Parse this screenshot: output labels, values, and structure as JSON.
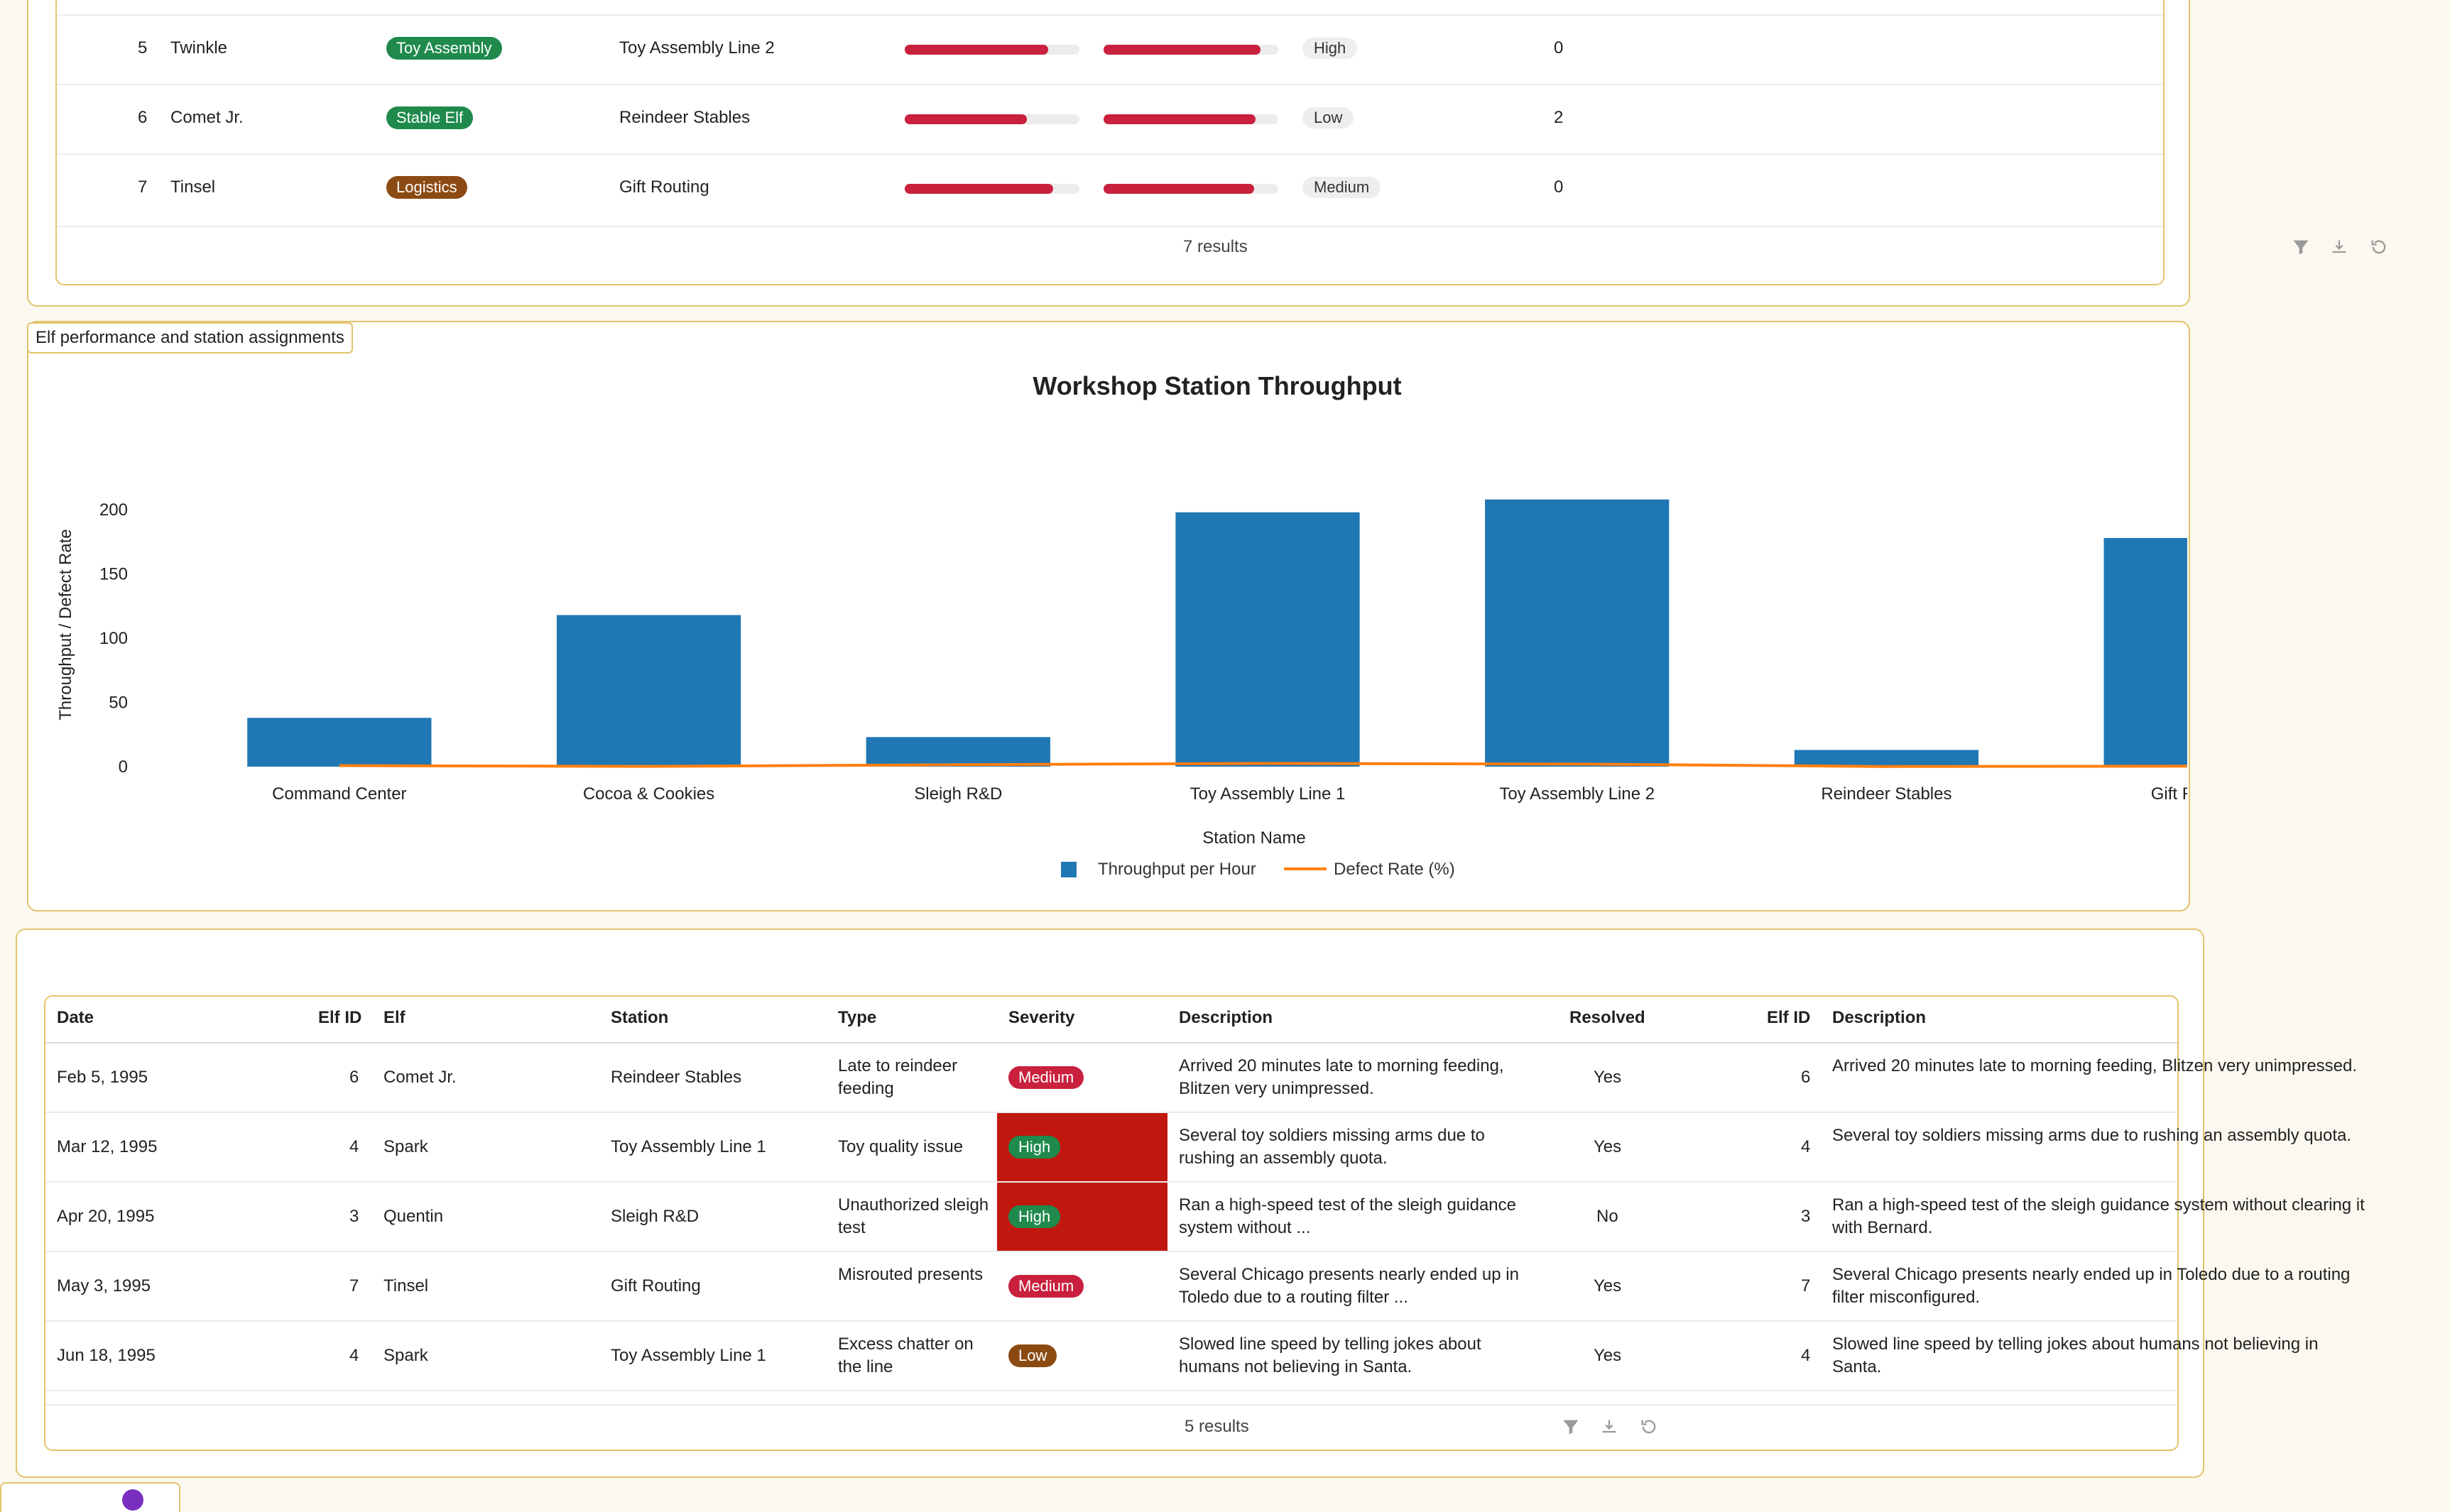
{
  "top_table": {
    "rows": [
      {
        "num": "5",
        "name": "Twinkle",
        "dept": "Toy Assembly",
        "dept_color": "#1f8a4c",
        "station": "Toy Assembly Line 2",
        "bar1": 0.82,
        "bar2": 0.9,
        "priority": "High",
        "count": "0"
      },
      {
        "num": "6",
        "name": "Comet Jr.",
        "dept": "Stable Elf",
        "dept_color": "#1f8a4c",
        "station": "Reindeer Stables",
        "bar1": 0.7,
        "bar2": 0.87,
        "priority": "Low",
        "count": "2"
      },
      {
        "num": "7",
        "name": "Tinsel",
        "dept": "Logistics",
        "dept_color": "#8b4a12",
        "station": "Gift Routing",
        "bar1": 0.85,
        "bar2": 0.86,
        "priority": "Medium",
        "count": "0"
      }
    ],
    "footer": "7 results"
  },
  "chart_tooltip": "Elf performance and station assignments",
  "chart_data": {
    "type": "bar",
    "title": "Workshop Station Throughput",
    "xlabel": "Station Name",
    "ylabel": "Throughput / Defect Rate",
    "categories": [
      "Command Center",
      "Cocoa & Cookies",
      "Sleigh R&D",
      "Toy Assembly Line 1",
      "Toy Assembly Line 2",
      "Reindeer Stables",
      "Gift Routing"
    ],
    "series": [
      {
        "name": "Throughput per Hour",
        "type": "bar",
        "color": "#1f77b4",
        "values": [
          38,
          118,
          23,
          198,
          208,
          13,
          178
        ]
      },
      {
        "name": "Defect Rate (%)",
        "type": "line",
        "color": "#ff7f0e",
        "values": [
          0.8,
          0.2,
          1.5,
          2.5,
          2.0,
          0.1,
          0.4
        ]
      }
    ],
    "ylim": [
      0,
      210
    ],
    "yticks": [
      "0",
      "50",
      "100",
      "150",
      "200"
    ],
    "ytick_values": [
      0,
      50,
      100,
      150,
      200
    ],
    "legend": [
      "Throughput per Hour",
      "Defect Rate (%)"
    ]
  },
  "incidents": {
    "headers": {
      "date": "Date",
      "elf_id": "Elf ID",
      "elf": "Elf",
      "station": "Station",
      "type": "Type",
      "severity": "Severity",
      "description": "Description",
      "resolved": "Resolved",
      "elf_id2": "Elf ID",
      "description2": "Description"
    },
    "rows": [
      {
        "date": "Feb 5, 1995",
        "elf_id": "6",
        "elf": "Comet Jr.",
        "station": "Reindeer Stables",
        "type": "Late to reindeer feeding",
        "severity": "Medium",
        "desc": "Arrived 20 minutes late to morning feeding, Blitzen very unimpressed.",
        "resolved": "Yes",
        "elf_id2": "6",
        "desc2": "Arrived 20 minutes late to morning feeding, Blitzen very unimpressed."
      },
      {
        "date": "Mar 12, 1995",
        "elf_id": "4",
        "elf": "Spark",
        "station": "Toy Assembly Line 1",
        "type": "Toy quality issue",
        "severity": "High",
        "desc": "Several toy soldiers missing arms due to rushing an assembly quota.",
        "resolved": "Yes",
        "elf_id2": "4",
        "desc2": "Several toy soldiers missing arms due to rushing an assembly quota."
      },
      {
        "date": "Apr 20, 1995",
        "elf_id": "3",
        "elf": "Quentin",
        "station": "Sleigh R&D",
        "type": "Unauthorized sleigh test",
        "severity": "High",
        "desc": "Ran a high-speed test of the sleigh guidance system without ...",
        "resolved": "No",
        "elf_id2": "3",
        "desc2": "Ran a high-speed test of the sleigh guidance system without clearing it with Bernard."
      },
      {
        "date": "May 3, 1995",
        "elf_id": "7",
        "elf": "Tinsel",
        "station": "Gift Routing",
        "type": "Misrouted presents",
        "severity": "Medium",
        "desc": "Several Chicago presents nearly ended up in Toledo due to a routing filter ...",
        "resolved": "Yes",
        "elf_id2": "7",
        "desc2": "Several Chicago presents nearly ended up in Toledo due to a routing filter misconfigured."
      },
      {
        "date": "Jun 18, 1995",
        "elf_id": "4",
        "elf": "Spark",
        "station": "Toy Assembly Line 1",
        "type": "Excess chatter on the line",
        "severity": "Low",
        "desc": "Slowed line speed by telling jokes about humans not believing in Santa.",
        "resolved": "Yes",
        "elf_id2": "4",
        "desc2": "Slowed line speed by telling jokes about humans not believing in Santa."
      }
    ],
    "footer": "5 results"
  },
  "colors": {
    "badge_medium": "#c8203d",
    "badge_high": "#1f8a4c",
    "badge_low": "#8b4a12",
    "severity_cell": "#c0180f",
    "accent_border": "#e3c36b"
  }
}
